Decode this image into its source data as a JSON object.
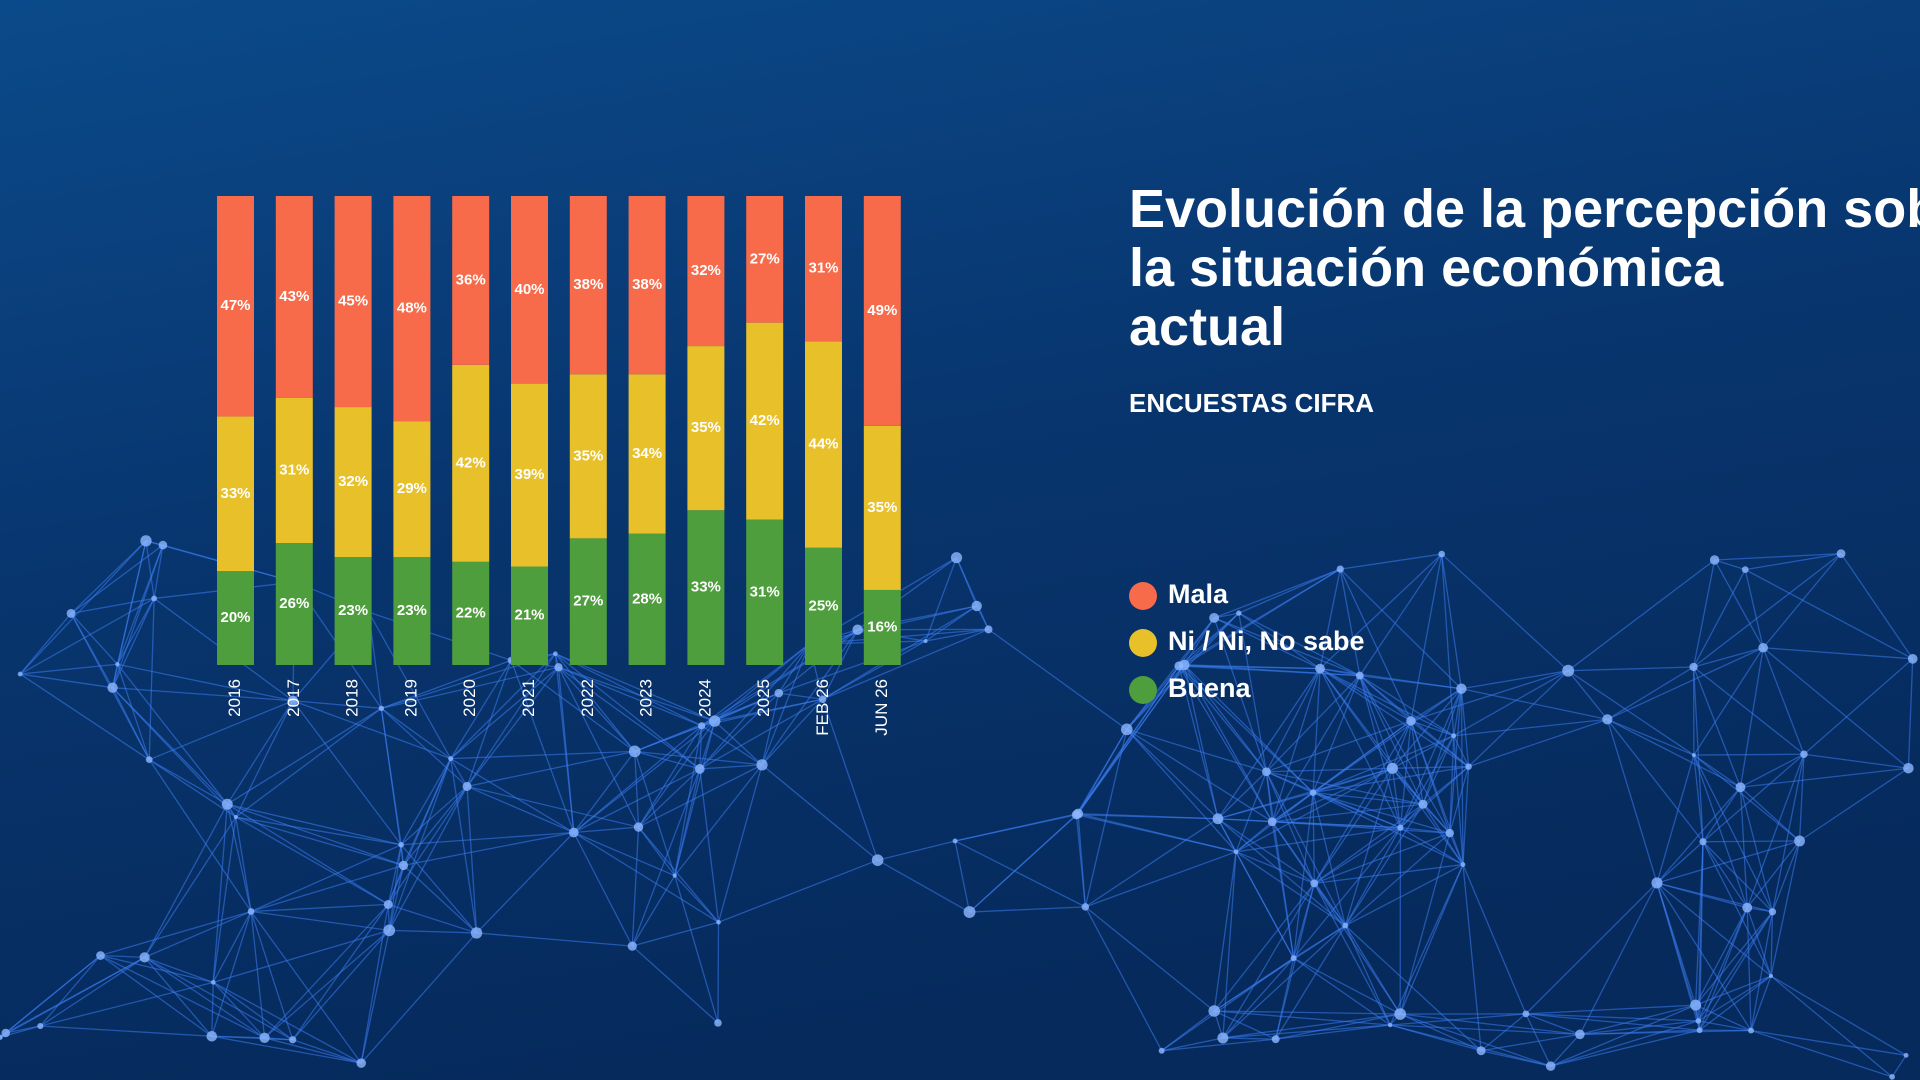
{
  "chart_data": {
    "type": "stacked_bar",
    "title": "Evolución de la percepción sobre la situación económica actual",
    "subtitle": "ENCUESTAS CIFRA",
    "categories": [
      "2016",
      "2017",
      "2018",
      "2019",
      "2020",
      "2021",
      "2022",
      "2023",
      "2024",
      "2025",
      "FEB 26",
      "JUN 26"
    ],
    "ylim": [
      0,
      100
    ],
    "series": [
      {
        "name": "Mala",
        "color": "#f76a4a",
        "values": [
          47,
          43,
          45,
          48,
          36,
          40,
          38,
          38,
          32,
          27,
          31,
          49
        ],
        "value_labels": [
          "47%",
          "43%",
          "45%",
          "48%",
          "36%",
          "40%",
          "38%",
          "38%",
          "32%",
          "27%",
          "31%",
          "49%"
        ]
      },
      {
        "name": "Ni / Ni, No sabe",
        "color": "#e8c02a",
        "values": [
          33,
          31,
          32,
          29,
          42,
          39,
          35,
          34,
          35,
          42,
          44,
          35
        ],
        "value_labels": [
          "33%",
          "31%",
          "32%",
          "29%",
          "42%",
          "39%",
          "35%",
          "34%",
          "35%",
          "42%",
          "44%",
          "35%"
        ]
      },
      {
        "name": "Buena",
        "color": "#4e9e3e",
        "values": [
          20,
          26,
          23,
          23,
          22,
          21,
          27,
          28,
          33,
          31,
          25,
          16
        ],
        "value_labels": [
          "20%",
          "26%",
          "23%",
          "23%",
          "22%",
          "21%",
          "27%",
          "28%",
          "33%",
          "31%",
          "25%",
          "16%"
        ]
      }
    ]
  }
}
